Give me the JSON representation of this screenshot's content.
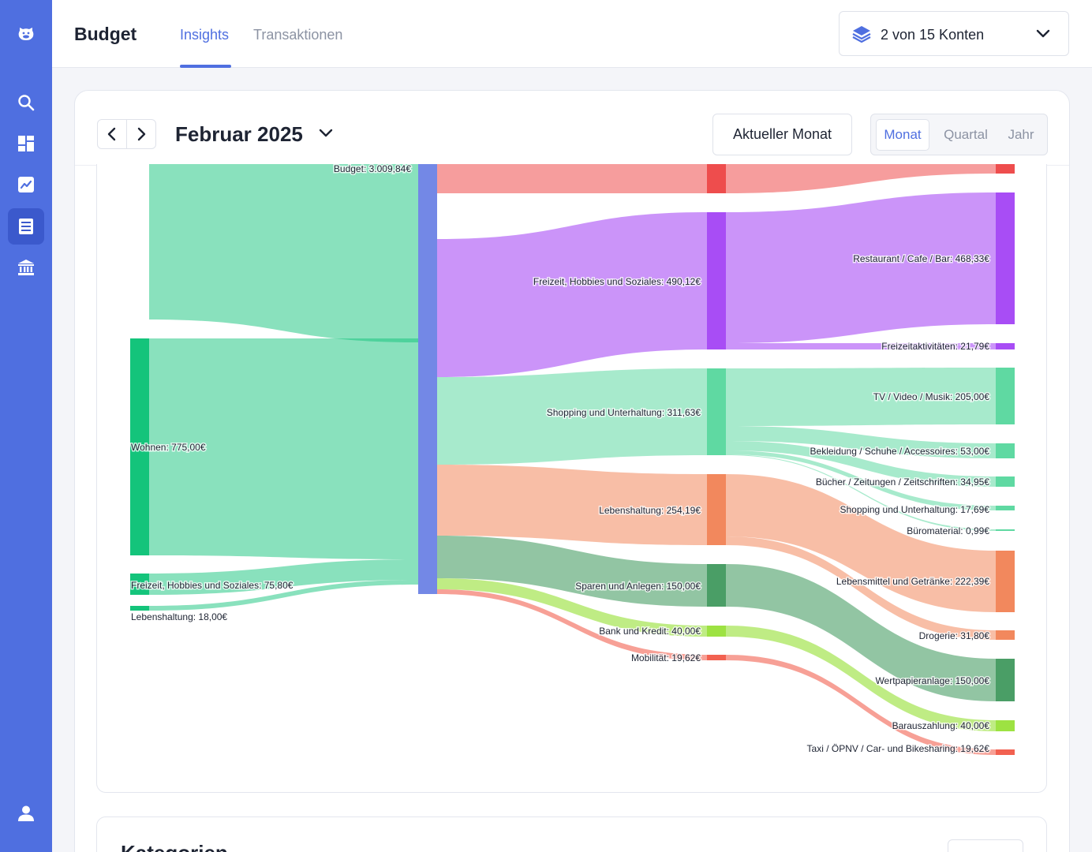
{
  "app": {
    "title": "Budget"
  },
  "tabs": [
    {
      "label": "Insights",
      "active": true
    },
    {
      "label": "Transaktionen",
      "active": false
    }
  ],
  "sidebar": {
    "items": [
      {
        "icon": "logo-icon"
      },
      {
        "icon": "search-icon"
      },
      {
        "icon": "dashboard-icon"
      },
      {
        "icon": "chart-icon"
      },
      {
        "icon": "budget-icon",
        "active": true
      },
      {
        "icon": "bank-icon"
      },
      {
        "icon": "user-icon"
      }
    ]
  },
  "accounts": {
    "label": "2 von 15 Konten"
  },
  "period": {
    "title": "Februar 2025",
    "current_label": "Aktueller Monat",
    "options": [
      {
        "label": "Monat",
        "active": true
      },
      {
        "label": "Quartal",
        "active": false
      },
      {
        "label": "Jahr",
        "active": false
      }
    ]
  },
  "next_section": {
    "title": "Kategorien"
  },
  "colors": {
    "accent": "#4f6fe0",
    "income": "#14c47b",
    "budget": "#7388e6",
    "leisure": "#a84df5",
    "shopping": "#5fd9a2",
    "living": "#f2885d",
    "savings": "#4a9e66",
    "bank": "#9de242",
    "mobility": "#f26150",
    "top": "#ee4d4d"
  },
  "chart_data": {
    "type": "sankey",
    "unit": "€",
    "nodes": [
      {
        "id": "wohnen_in",
        "label": "Wohnen: 775,00€",
        "value": 775.0,
        "column": 0
      },
      {
        "id": "freizeit_in",
        "label": "Freizeit, Hobbies und Soziales: 75,80€",
        "value": 75.8,
        "column": 0
      },
      {
        "id": "leben_in",
        "label": "Lebenshaltung: 18,00€",
        "value": 18.0,
        "column": 0
      },
      {
        "id": "budget",
        "label": "Budget: 3.009,84€",
        "value": 3009.84,
        "column": 1
      },
      {
        "id": "freizeit",
        "label": "Freizeit, Hobbies und Soziales: 490,12€",
        "value": 490.12,
        "column": 2
      },
      {
        "id": "shopping",
        "label": "Shopping und Unterhaltung: 311,63€",
        "value": 311.63,
        "column": 2
      },
      {
        "id": "leben",
        "label": "Lebenshaltung: 254,19€",
        "value": 254.19,
        "column": 2
      },
      {
        "id": "sparen",
        "label": "Sparen und Anlegen: 150,00€",
        "value": 150.0,
        "column": 2
      },
      {
        "id": "bank",
        "label": "Bank und Kredit: 40,00€",
        "value": 40.0,
        "column": 2
      },
      {
        "id": "mobil",
        "label": "Mobilität: 19,62€",
        "value": 19.62,
        "column": 2
      },
      {
        "id": "restaurant",
        "label": "Restaurant / Cafe / Bar: 468,33€",
        "value": 468.33,
        "column": 3
      },
      {
        "id": "freizeitakt",
        "label": "Freizeitaktivitäten: 21,79€",
        "value": 21.79,
        "column": 3
      },
      {
        "id": "tv",
        "label": "TV / Video / Musik: 205,00€",
        "value": 205.0,
        "column": 3
      },
      {
        "id": "bekleidung",
        "label": "Bekleidung / Schuhe / Accessoires: 53,00€",
        "value": 53.0,
        "column": 3
      },
      {
        "id": "buecher",
        "label": "Bücher / Zeitungen / Zeitschriften: 34,95€",
        "value": 34.95,
        "column": 3
      },
      {
        "id": "shopping_sub",
        "label": "Shopping und Unterhaltung: 17,69€",
        "value": 17.69,
        "column": 3
      },
      {
        "id": "buero",
        "label": "Büromaterial: 0,99€",
        "value": 0.99,
        "column": 3
      },
      {
        "id": "lebensmittel",
        "label": "Lebensmittel und Getränke: 222,39€",
        "value": 222.39,
        "column": 3
      },
      {
        "id": "drogerie",
        "label": "Drogerie: 31,80€",
        "value": 31.8,
        "column": 3
      },
      {
        "id": "wertpapier",
        "label": "Wertpapieranlage: 150,00€",
        "value": 150.0,
        "column": 3
      },
      {
        "id": "bargeld",
        "label": "Barauszahlung: 40,00€",
        "value": 40.0,
        "column": 3
      },
      {
        "id": "taxi",
        "label": "Taxi / ÖPNV / Car- und Bikesharing: 19,62€",
        "value": 19.62,
        "column": 3
      }
    ]
  }
}
